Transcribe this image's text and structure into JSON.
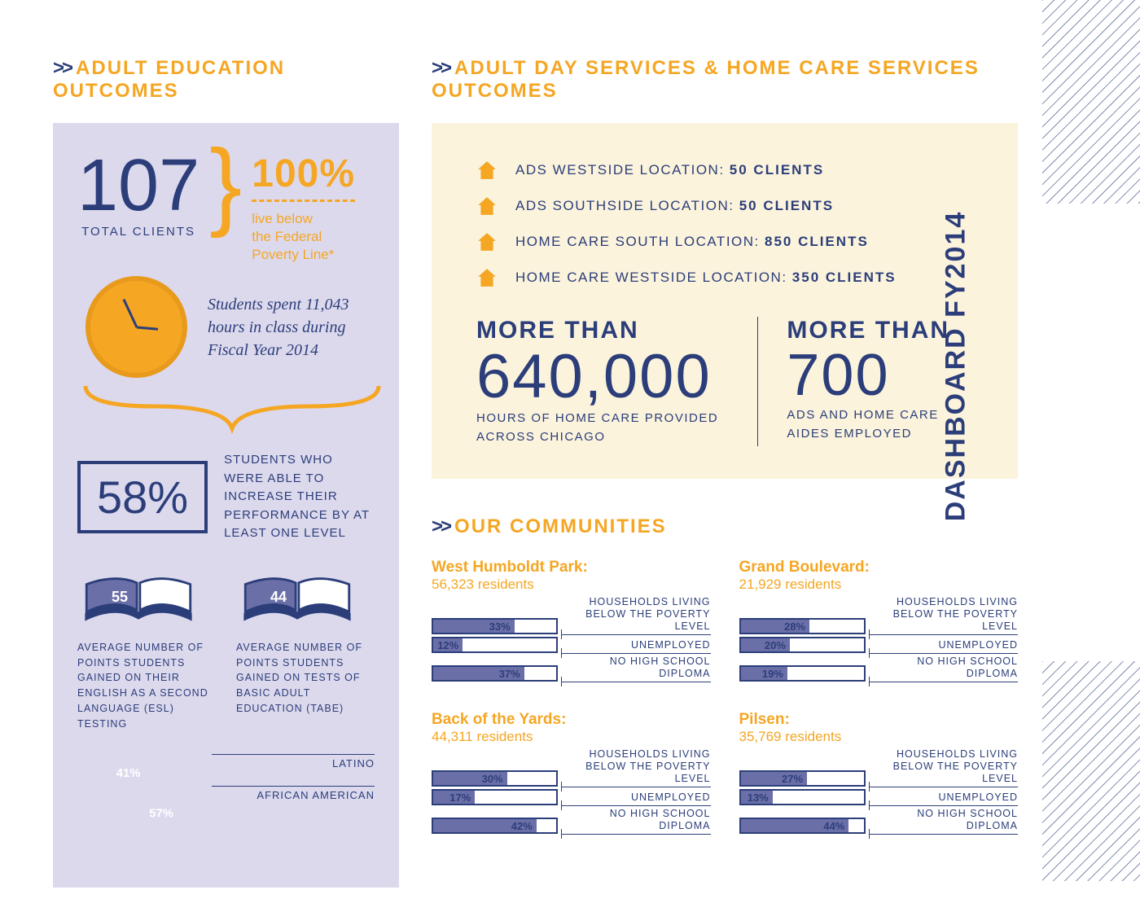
{
  "side_label": "DASHBOARD FY2014",
  "edu": {
    "title": "ADULT EDUCATION OUTCOMES",
    "total_clients_num": "107",
    "total_clients_label": "TOTAL CLIENTS",
    "pct100": "100%",
    "fpl_line1": "live below",
    "fpl_line2": "the Federal",
    "fpl_line3": "Poverty Line*",
    "hours_text": "Students spent 11,043 hours in class during Fiscal Year 2014",
    "pct58": "58%",
    "pct58_text": "STUDENTS WHO WERE ABLE TO INCREASE THEIR PERFORMANCE BY AT LEAST ONE LEVEL",
    "book1_num": "55",
    "book1_caption": "AVERAGE NUMBER OF POINTS STUDENTS GAINED ON THEIR ENGLISH AS A SECOND LANGUAGE (ESL) TESTING",
    "book2_num": "44",
    "book2_caption": "AVERAGE NUMBER OF POINTS STUDENTS GAINED ON TESTS OF BASIC ADULT EDUCATION (TABE)",
    "pie": {
      "latino_pct": 41,
      "african_american_pct": 57,
      "latino_color": "#f9c978",
      "aa_color": "#f5a623",
      "rest_color": "#dcd9ed",
      "latino_label": "LATINO",
      "aa_label": "AFRICAN AMERICAN",
      "latino_text": "41%",
      "aa_text": "57%"
    }
  },
  "ads": {
    "title": "ADULT DAY SERVICES & HOME CARE SERVICES OUTCOMES",
    "rows": [
      {
        "label": "ADS WESTSIDE LOCATION:",
        "value": "50 CLIENTS"
      },
      {
        "label": "ADS SOUTHSIDE LOCATION:",
        "value": "50 CLIENTS"
      },
      {
        "label": "HOME CARE SOUTH LOCATION:",
        "value": "850 CLIENTS"
      },
      {
        "label": "HOME CARE WESTSIDE LOCATION:",
        "value": "350 CLIENTS"
      }
    ],
    "more_than_label": "MORE THAN",
    "hours_num": "640,000",
    "hours_sub": "HOURS OF HOME CARE PROVIDED ACROSS CHICAGO",
    "aides_num": "700",
    "aides_sub": "ADS AND HOME CARE AIDES EMPLOYED"
  },
  "comm": {
    "title": "OUR COMMUNITIES",
    "stat_labels": {
      "poverty": "HOUSEHOLDS LIVING BELOW THE POVERTY LEVEL",
      "unemployed": "UNEMPLOYED",
      "diploma": "NO HIGH SCHOOL DIPLOMA"
    },
    "blocks": [
      {
        "name": "West Humboldt Park:",
        "residents": "56,323 residents",
        "poverty": 33,
        "unemployed": 12,
        "diploma": 37
      },
      {
        "name": "Grand Boulevard:",
        "residents": "21,929 residents",
        "poverty": 28,
        "unemployed": 20,
        "diploma": 19
      },
      {
        "name": "Back of the Yards:",
        "residents": "44,311 residents",
        "poverty": 30,
        "unemployed": 17,
        "diploma": 42
      },
      {
        "name": "Pilsen:",
        "residents": "35,769 residents",
        "poverty": 27,
        "unemployed": 13,
        "diploma": 44
      }
    ]
  },
  "colors": {
    "navy": "#2c3e7a",
    "orange": "#f5a623",
    "lavender": "#dcd9ed",
    "cream": "#fbf3dc",
    "bar_fill": "#6b6fa8"
  }
}
